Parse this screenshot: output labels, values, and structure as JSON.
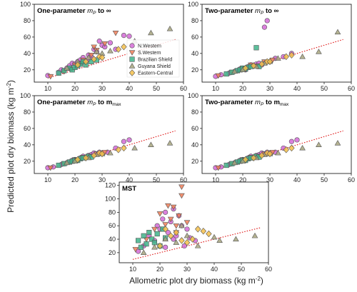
{
  "figure": {
    "ylabel": "Predicted plot dry biomass (kg m",
    "ylabel_sup": "-2",
    "ylabel_end": ")",
    "xlabel": "Allometric plot dry biomass (kg m",
    "xlabel_sup": "-2",
    "xlabel_end": ")"
  },
  "legend": {
    "placement": "inside panel 1, right",
    "entries": [
      {
        "name": "N.Western",
        "color": "#d36ad6",
        "marker": "circle"
      },
      {
        "name": "S.Western",
        "color": "#ee7d57",
        "marker": "triangle-down"
      },
      {
        "name": "Brazilian Shield",
        "color": "#3fb389",
        "marker": "square"
      },
      {
        "name": "Guyana Shield",
        "color": "#a7a47e",
        "marker": "triangle-up"
      },
      {
        "name": "Eastern-Central",
        "color": "#f5c04a",
        "marker": "diamond"
      }
    ]
  },
  "panels": [
    {
      "title_pre": "One-parameter ",
      "title_mid": "m",
      "title_sub": "P",
      "title_post": " to ∞",
      "xticks": [
        "10",
        "20",
        "30",
        "40",
        "50",
        "60"
      ],
      "yticks": [
        "20",
        "40",
        "60",
        "80",
        "100"
      ]
    },
    {
      "title_pre": "Two-parameter    ",
      "title_mid": "m",
      "title_sub": "P",
      "title_post": " to ∞",
      "xticks": [
        "10",
        "20",
        "30",
        "40",
        "50",
        "60"
      ],
      "yticks": [
        "20",
        "40",
        "60",
        "80",
        "100"
      ]
    },
    {
      "title_pre": "One-parameter ",
      "title_mid": "m",
      "title_sub": "P",
      "title_post": " to m",
      "title_sub2": "max",
      "xticks": [
        "10",
        "20",
        "30",
        "40",
        "50",
        "60"
      ],
      "yticks": [
        "20",
        "40",
        "60",
        "80",
        "100"
      ]
    },
    {
      "title_pre": "Two-parameter ",
      "title_mid": "m",
      "title_sub": "P",
      "title_post": " to m",
      "title_sub2": "max",
      "xticks": [
        "10",
        "20",
        "30",
        "40",
        "50",
        "60"
      ],
      "yticks": [
        "20",
        "40",
        "60",
        "80",
        "100"
      ]
    },
    {
      "title_pre": "MST",
      "title_mid": "",
      "title_sub": "",
      "title_post": "",
      "xticks": [
        "10",
        "20",
        "30",
        "40",
        "50",
        "60"
      ],
      "yticks": [
        "20",
        "40",
        "60",
        "80",
        "100",
        "120"
      ]
    }
  ],
  "chart_data": [
    {
      "type": "scatter",
      "title": "One-parameter mP to ∞",
      "xlim": [
        5,
        60
      ],
      "ylim": [
        5,
        100
      ],
      "identity_line": true,
      "series": [
        {
          "name": "N.Western",
          "x": [
            10,
            14,
            15,
            17,
            18,
            19,
            20,
            21,
            22,
            22,
            23,
            24,
            25,
            25,
            26,
            27,
            28,
            29,
            30,
            31,
            33,
            35,
            38,
            40
          ],
          "y": [
            13,
            17,
            20,
            22,
            25,
            28,
            27,
            30,
            32,
            28,
            35,
            30,
            38,
            33,
            36,
            45,
            42,
            55,
            50,
            48,
            53,
            45,
            62,
            61
          ]
        },
        {
          "name": "S.Western",
          "x": [
            11,
            16,
            20,
            23,
            26,
            27,
            28,
            31,
            35
          ],
          "y": [
            12,
            18,
            26,
            32,
            38,
            48,
            44,
            52,
            65
          ]
        },
        {
          "name": "Brazilian Shield",
          "x": [
            14,
            16,
            18,
            19,
            20,
            21,
            22,
            23,
            24,
            26,
            28
          ],
          "y": [
            16,
            19,
            22,
            20,
            23,
            25,
            27,
            30,
            26,
            30,
            32
          ]
        },
        {
          "name": "Guyana Shield",
          "x": [
            17,
            21,
            25,
            28,
            30,
            33,
            42,
            48,
            55
          ],
          "y": [
            22,
            30,
            35,
            42,
            40,
            43,
            55,
            65,
            70
          ]
        },
        {
          "name": "Eastern-Central",
          "x": [
            21,
            24,
            27,
            29,
            30,
            36,
            38
          ],
          "y": [
            26,
            30,
            33,
            36,
            35,
            45,
            48
          ]
        }
      ]
    },
    {
      "type": "scatter",
      "title": "Two-parameter mP to ∞",
      "xlim": [
        5,
        60
      ],
      "ylim": [
        5,
        100
      ],
      "identity_line": true,
      "series": [
        {
          "name": "N.Western",
          "x": [
            10,
            12,
            15,
            17,
            18,
            19,
            20,
            21,
            22,
            22,
            23,
            24,
            25,
            26,
            27,
            28,
            29,
            30,
            32,
            35,
            38
          ],
          "y": [
            12,
            14,
            16,
            18,
            19,
            21,
            22,
            20,
            24,
            23,
            26,
            25,
            27,
            28,
            26,
            72,
            80,
            30,
            34,
            36,
            40
          ]
        },
        {
          "name": "S.Western",
          "x": [
            11,
            16,
            20,
            23,
            25,
            28,
            31
          ],
          "y": [
            13,
            17,
            22,
            26,
            25,
            30,
            32
          ]
        },
        {
          "name": "Brazilian Shield",
          "x": [
            14,
            16,
            18,
            19,
            20,
            21,
            22,
            23,
            25,
            26
          ],
          "y": [
            15,
            17,
            19,
            20,
            22,
            21,
            23,
            24,
            47,
            24
          ]
        },
        {
          "name": "Guyana Shield",
          "x": [
            17,
            20,
            25,
            28,
            30,
            33,
            42,
            48,
            55
          ],
          "y": [
            18,
            20,
            24,
            28,
            30,
            34,
            36,
            42,
            66
          ]
        },
        {
          "name": "Eastern-Central",
          "x": [
            21,
            24,
            27,
            29,
            30,
            36,
            38
          ],
          "y": [
            22,
            25,
            27,
            30,
            30,
            36,
            38
          ]
        }
      ]
    },
    {
      "type": "scatter",
      "title": "One-parameter mP to mmax",
      "xlim": [
        5,
        60
      ],
      "ylim": [
        5,
        100
      ],
      "identity_line": true,
      "series": [
        {
          "name": "N.Western",
          "x": [
            10,
            12,
            15,
            17,
            18,
            19,
            20,
            21,
            22,
            23,
            24,
            25,
            26,
            27,
            28,
            29,
            30,
            32,
            35,
            38,
            40
          ],
          "y": [
            12,
            13,
            16,
            18,
            19,
            21,
            22,
            21,
            24,
            26,
            25,
            27,
            28,
            30,
            29,
            31,
            30,
            31,
            36,
            44,
            46
          ]
        },
        {
          "name": "S.Western",
          "x": [
            11,
            16,
            20,
            23,
            25,
            28,
            31
          ],
          "y": [
            12,
            17,
            22,
            25,
            26,
            29,
            31
          ]
        },
        {
          "name": "Brazilian Shield",
          "x": [
            14,
            16,
            18,
            19,
            20,
            21,
            22,
            23,
            25,
            26
          ],
          "y": [
            15,
            17,
            19,
            20,
            21,
            21,
            23,
            24,
            26,
            25
          ]
        },
        {
          "name": "Guyana Shield",
          "x": [
            17,
            20,
            25,
            28,
            30,
            33,
            42,
            48,
            55
          ],
          "y": [
            18,
            20,
            24,
            28,
            29,
            30,
            36,
            40,
            42
          ]
        },
        {
          "name": "Eastern-Central",
          "x": [
            21,
            24,
            27,
            29,
            30,
            36,
            38
          ],
          "y": [
            22,
            24,
            27,
            30,
            29,
            34,
            36
          ]
        }
      ]
    },
    {
      "type": "scatter",
      "title": "Two-parameter mP to mmax",
      "xlim": [
        5,
        60
      ],
      "ylim": [
        5,
        100
      ],
      "identity_line": true,
      "series": [
        {
          "name": "N.Western",
          "x": [
            10,
            12,
            15,
            17,
            18,
            19,
            20,
            21,
            22,
            23,
            24,
            25,
            26,
            27,
            28,
            29,
            30,
            32,
            35,
            38,
            40
          ],
          "y": [
            12,
            13,
            16,
            18,
            19,
            21,
            22,
            21,
            24,
            26,
            25,
            27,
            28,
            30,
            29,
            31,
            30,
            31,
            36,
            44,
            46
          ]
        },
        {
          "name": "S.Western",
          "x": [
            11,
            16,
            20,
            23,
            25,
            28,
            31
          ],
          "y": [
            12,
            17,
            22,
            25,
            26,
            29,
            31
          ]
        },
        {
          "name": "Brazilian Shield",
          "x": [
            14,
            16,
            18,
            19,
            20,
            21,
            22,
            23,
            25,
            26
          ],
          "y": [
            15,
            17,
            19,
            20,
            21,
            21,
            23,
            24,
            26,
            25
          ]
        },
        {
          "name": "Guyana Shield",
          "x": [
            17,
            20,
            25,
            28,
            30,
            33,
            42,
            48,
            55
          ],
          "y": [
            18,
            20,
            24,
            28,
            29,
            30,
            36,
            40,
            42
          ]
        },
        {
          "name": "Eastern-Central",
          "x": [
            21,
            24,
            27,
            29,
            30,
            36,
            38
          ],
          "y": [
            22,
            24,
            27,
            30,
            29,
            34,
            36
          ]
        }
      ]
    },
    {
      "type": "scatter",
      "title": "MST",
      "xlim": [
        5,
        60
      ],
      "ylim": [
        5,
        125
      ],
      "identity_line": true,
      "series": [
        {
          "name": "N.Western",
          "x": [
            12,
            14,
            16,
            18,
            19,
            20,
            21,
            22,
            22,
            23,
            24,
            25,
            25,
            26,
            27,
            28,
            29,
            30,
            31,
            33
          ],
          "y": [
            22,
            30,
            45,
            38,
            60,
            55,
            70,
            28,
            80,
            50,
            66,
            85,
            40,
            45,
            75,
            60,
            30,
            55,
            42,
            38
          ]
        },
        {
          "name": "S.Western",
          "x": [
            11,
            15,
            18,
            20,
            22,
            23,
            24,
            25,
            26,
            26,
            27,
            28,
            28,
            30
          ],
          "y": [
            25,
            40,
            55,
            78,
            62,
            90,
            70,
            88,
            50,
            60,
            75,
            105,
            118,
            65
          ]
        },
        {
          "name": "Brazilian Shield",
          "x": [
            12,
            13,
            14,
            15,
            16,
            17,
            18,
            19,
            20,
            21,
            22
          ],
          "y": [
            38,
            28,
            45,
            33,
            50,
            40,
            35,
            48,
            30,
            55,
            42
          ]
        },
        {
          "name": "Guyana Shield",
          "x": [
            14,
            18,
            22,
            26,
            28,
            30,
            34,
            40,
            42,
            48,
            55
          ],
          "y": [
            20,
            28,
            40,
            35,
            60,
            45,
            30,
            43,
            38,
            40,
            45
          ]
        },
        {
          "name": "Eastern-Central",
          "x": [
            20,
            22,
            24,
            26,
            28,
            30,
            32,
            34,
            36,
            38
          ],
          "y": [
            30,
            55,
            45,
            50,
            38,
            35,
            40,
            55,
            52,
            48
          ]
        }
      ]
    }
  ]
}
